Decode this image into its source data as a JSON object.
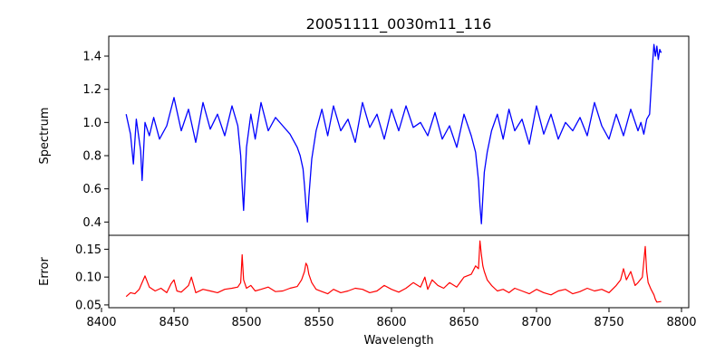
{
  "chart_data": {
    "type": "line",
    "title": "20051111_0030m11_116",
    "xlabel": "Wavelength",
    "xlim": [
      8405,
      8805
    ],
    "xticks": [
      8400,
      8450,
      8500,
      8550,
      8600,
      8650,
      8700,
      8750,
      8800
    ],
    "grid": false,
    "panels": [
      {
        "name": "spectrum",
        "ylabel": "Spectrum",
        "ylim": [
          0.32,
          1.52
        ],
        "yticks": [
          0.4,
          0.6,
          0.8,
          1.0,
          1.2,
          1.4
        ],
        "series": [
          {
            "color": "#0000ff",
            "x": [
              8417,
              8420,
              8422,
              8424,
              8427,
              8428,
              8430,
              8433,
              8436,
              8440,
              8445,
              8450,
              8455,
              8460,
              8465,
              8470,
              8475,
              8480,
              8485,
              8490,
              8494,
              8496,
              8497,
              8498,
              8500,
              8503,
              8506,
              8510,
              8515,
              8520,
              8525,
              8530,
              8535,
              8537,
              8539,
              8540,
              8541,
              8542,
              8543,
              8545,
              8548,
              8552,
              8556,
              8560,
              8565,
              8570,
              8575,
              8580,
              8585,
              8590,
              8595,
              8600,
              8605,
              8610,
              8615,
              8620,
              8625,
              8630,
              8635,
              8640,
              8645,
              8650,
              8655,
              8658,
              8660,
              8661,
              8662,
              8663,
              8664,
              8666,
              8669,
              8673,
              8677,
              8681,
              8685,
              8690,
              8695,
              8700,
              8705,
              8710,
              8715,
              8720,
              8725,
              8730,
              8735,
              8740,
              8745,
              8750,
              8755,
              8760,
              8765,
              8770,
              8772,
              8774,
              8776,
              8778,
              8779,
              8780,
              8781,
              8782,
              8783,
              8784,
              8785,
              8786
            ],
            "values": [
              1.05,
              0.93,
              0.75,
              1.02,
              0.83,
              0.65,
              1.0,
              0.92,
              1.03,
              0.9,
              0.98,
              1.15,
              0.95,
              1.08,
              0.88,
              1.12,
              0.96,
              1.05,
              0.92,
              1.1,
              0.98,
              0.8,
              0.62,
              0.47,
              0.85,
              1.05,
              0.9,
              1.12,
              0.95,
              1.03,
              0.98,
              0.93,
              0.85,
              0.8,
              0.72,
              0.62,
              0.5,
              0.4,
              0.55,
              0.78,
              0.95,
              1.08,
              0.92,
              1.1,
              0.95,
              1.02,
              0.88,
              1.12,
              0.97,
              1.05,
              0.9,
              1.08,
              0.95,
              1.1,
              0.97,
              1.0,
              0.92,
              1.06,
              0.9,
              0.98,
              0.85,
              1.05,
              0.92,
              0.82,
              0.65,
              0.5,
              0.39,
              0.55,
              0.7,
              0.82,
              0.95,
              1.05,
              0.9,
              1.08,
              0.95,
              1.02,
              0.87,
              1.1,
              0.93,
              1.05,
              0.9,
              1.0,
              0.95,
              1.03,
              0.92,
              1.12,
              0.98,
              0.9,
              1.05,
              0.92,
              1.08,
              0.95,
              1.0,
              0.93,
              1.02,
              1.05,
              1.2,
              1.35,
              1.47,
              1.4,
              1.46,
              1.38,
              1.44,
              1.42
            ]
          }
        ]
      },
      {
        "name": "error",
        "ylabel": "Error",
        "ylim": [
          0.045,
          0.175
        ],
        "yticks": [
          0.05,
          0.1,
          0.15
        ],
        "series": [
          {
            "color": "#ff0000",
            "x": [
              8417,
              8420,
              8423,
              8426,
              8428,
              8430,
              8433,
              8437,
              8441,
              8445,
              8448,
              8450,
              8452,
              8455,
              8460,
              8462,
              8465,
              8470,
              8475,
              8480,
              8485,
              8490,
              8494,
              8496,
              8497,
              8498,
              8500,
              8503,
              8506,
              8510,
              8515,
              8520,
              8525,
              8530,
              8535,
              8538,
              8540,
              8541,
              8542,
              8543,
              8545,
              8548,
              8552,
              8556,
              8560,
              8565,
              8570,
              8575,
              8580,
              8585,
              8590,
              8595,
              8600,
              8605,
              8610,
              8615,
              8620,
              8623,
              8625,
              8628,
              8632,
              8636,
              8640,
              8645,
              8650,
              8655,
              8658,
              8660,
              8661,
              8662,
              8663,
              8664,
              8666,
              8669,
              8673,
              8677,
              8681,
              8685,
              8690,
              8695,
              8700,
              8705,
              8710,
              8715,
              8720,
              8725,
              8730,
              8735,
              8740,
              8745,
              8750,
              8755,
              8758,
              8760,
              8762,
              8765,
              8768,
              8770,
              8773,
              8775,
              8776,
              8777,
              8779,
              8781,
              8782,
              8783,
              8786
            ],
            "values": [
              0.065,
              0.072,
              0.07,
              0.078,
              0.09,
              0.102,
              0.082,
              0.075,
              0.08,
              0.072,
              0.088,
              0.095,
              0.075,
              0.073,
              0.085,
              0.1,
              0.072,
              0.078,
              0.075,
              0.072,
              0.078,
              0.08,
              0.082,
              0.09,
              0.14,
              0.095,
              0.08,
              0.085,
              0.075,
              0.078,
              0.082,
              0.074,
              0.075,
              0.08,
              0.083,
              0.095,
              0.11,
              0.125,
              0.12,
              0.105,
              0.09,
              0.078,
              0.074,
              0.07,
              0.078,
              0.072,
              0.075,
              0.08,
              0.078,
              0.072,
              0.075,
              0.085,
              0.078,
              0.073,
              0.08,
              0.09,
              0.082,
              0.1,
              0.078,
              0.095,
              0.085,
              0.08,
              0.09,
              0.082,
              0.1,
              0.105,
              0.12,
              0.115,
              0.165,
              0.14,
              0.12,
              0.11,
              0.095,
              0.085,
              0.075,
              0.078,
              0.072,
              0.08,
              0.075,
              0.07,
              0.078,
              0.072,
              0.068,
              0.075,
              0.078,
              0.07,
              0.074,
              0.08,
              0.075,
              0.078,
              0.072,
              0.085,
              0.095,
              0.115,
              0.095,
              0.11,
              0.085,
              0.09,
              0.1,
              0.155,
              0.11,
              0.09,
              0.078,
              0.068,
              0.06,
              0.055,
              0.056
            ]
          }
        ]
      }
    ]
  }
}
